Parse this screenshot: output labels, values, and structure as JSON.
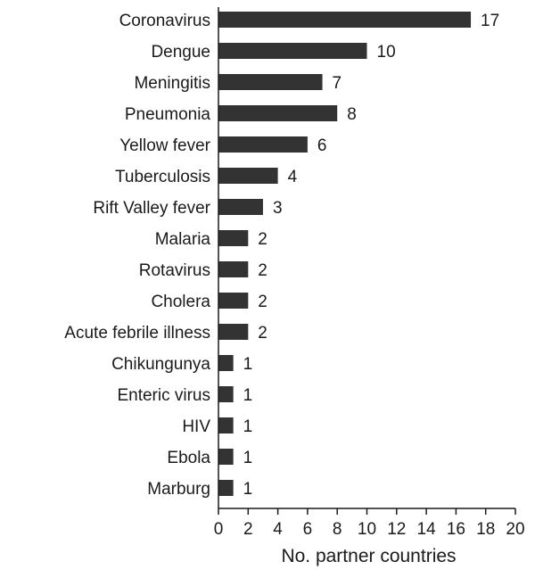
{
  "chart_data": {
    "type": "bar",
    "orientation": "horizontal",
    "categories": [
      "Coronavirus",
      "Dengue",
      "Meningitis",
      "Pneumonia",
      "Yellow fever",
      "Tuberculosis",
      "Rift Valley fever",
      "Malaria",
      "Rotavirus",
      "Cholera",
      "Acute febrile illness",
      "Chikungunya",
      "Enteric virus",
      "HIV",
      "Ebola",
      "Marburg"
    ],
    "values": [
      17,
      10,
      7,
      8,
      6,
      4,
      3,
      2,
      2,
      2,
      2,
      1,
      1,
      1,
      1,
      1
    ],
    "xlabel": "No. partner countries",
    "ylabel": "",
    "xlim": [
      0,
      20
    ],
    "xticks": [
      0,
      2,
      4,
      6,
      8,
      10,
      12,
      14,
      16,
      18,
      20
    ],
    "data_labels": true,
    "grid": false,
    "legend": "none",
    "bar_color": "#333333"
  }
}
